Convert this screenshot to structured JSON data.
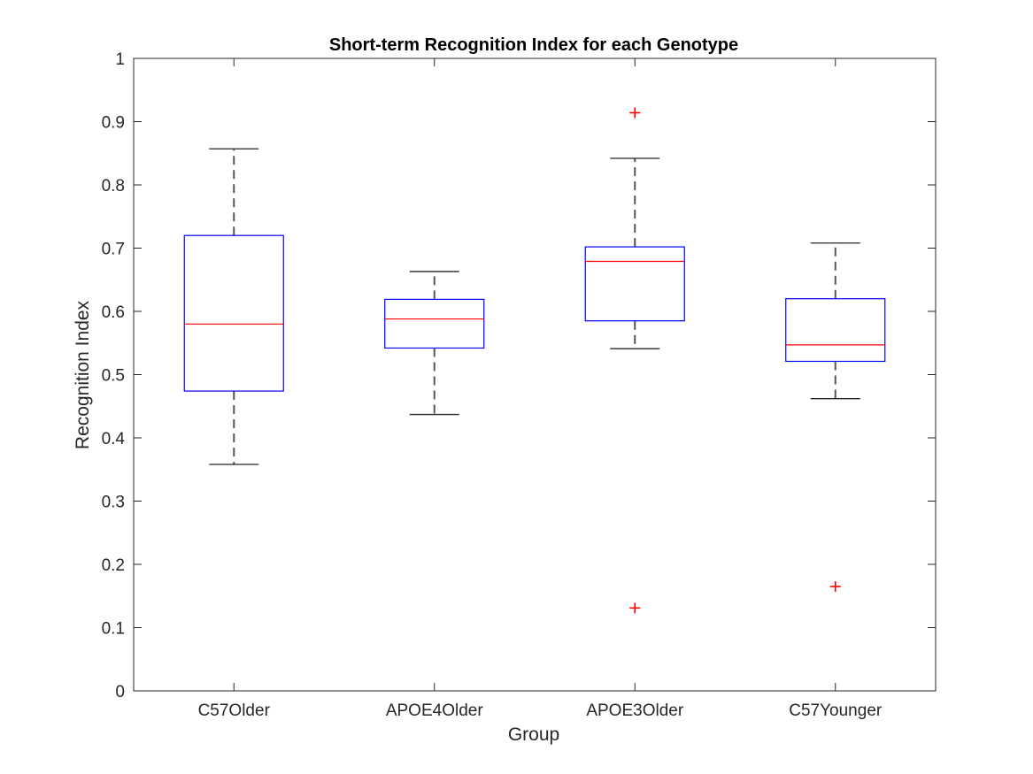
{
  "chart_data": {
    "type": "boxplot",
    "title": "Short-term Recognition Index for each Genotype",
    "xlabel": "Group",
    "ylabel": "Recognition Index",
    "ylim": [
      0,
      1
    ],
    "yticks": [
      "0",
      "0.1",
      "0.2",
      "0.3",
      "0.4",
      "0.5",
      "0.6",
      "0.7",
      "0.8",
      "0.9",
      "1"
    ],
    "grid": false,
    "colors": {
      "box": "#0000ff",
      "median": "#ff0000",
      "whisker": "#555555",
      "outlier": "#ff0000",
      "axis": "#262626"
    },
    "groups": [
      {
        "label": "C57Older",
        "whisker_low": 0.358,
        "q1": 0.474,
        "median": 0.58,
        "q3": 0.72,
        "whisker_high": 0.857,
        "outliers": []
      },
      {
        "label": "APOE4Older",
        "whisker_low": 0.437,
        "q1": 0.542,
        "median": 0.588,
        "q3": 0.619,
        "whisker_high": 0.663,
        "outliers": []
      },
      {
        "label": "APOE3Older",
        "whisker_low": 0.541,
        "q1": 0.585,
        "median": 0.679,
        "q3": 0.702,
        "whisker_high": 0.842,
        "outliers": [
          0.914,
          0.131
        ]
      },
      {
        "label": "C57Younger",
        "whisker_low": 0.462,
        "q1": 0.521,
        "median": 0.547,
        "q3": 0.62,
        "whisker_high": 0.708,
        "outliers": [
          0.165
        ]
      }
    ]
  }
}
